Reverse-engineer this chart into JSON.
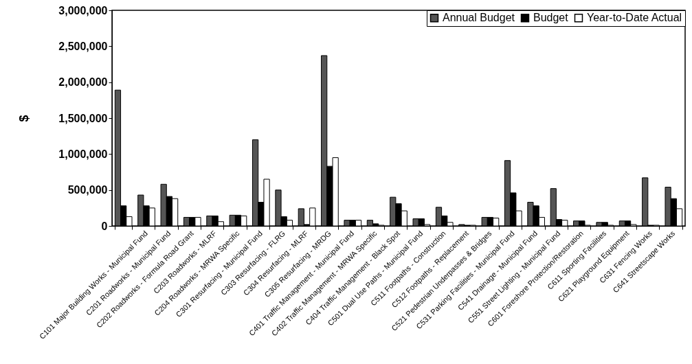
{
  "chart_data": {
    "type": "bar",
    "ylabel": "$",
    "categories": [
      null,
      "C101 Major Building Works - Municipal Fund",
      "C201 Roadworks - Municipal Fund",
      "C202 Roadworks - Formula Road Grant",
      "C203 Roadworks - MLRF",
      "C204 Roadworks - MRWA Specific",
      "C301 Resurfacing - Municipal Fund",
      "C303 Resurfacing - FLRG",
      "C304 Resurfacing - MLRF",
      "C305 Resurfacing - MRDG",
      "C401 Traffic Management - Municipal Fund",
      "C402 Traffic Management - MRWA Specific",
      "C404 Traffic Management - Black Spot",
      "C501 Dual Use Paths - Municipal Fund",
      "C511 Footpaths - Construction",
      "C512 Footpaths - Replacement",
      "C521 Pedestrian Underpasses & Bridges",
      "C531 Parking Facilities - Municipal Fund",
      "C541 Drainage - Municipal Fund",
      "C551 Street Lighting - Municipal Fund",
      "C601 Foreshore Protection/Restoration",
      "C611 Sporting Facilities",
      "C621 Playground Equipment",
      "C631 Fencing Works",
      "C641 Streetscape Works"
    ],
    "series": [
      {
        "name": "Annual Budget",
        "color": "#555555",
        "values": [
          1890000,
          430000,
          580000,
          120000,
          140000,
          150000,
          1200000,
          500000,
          240000,
          2370000,
          80000,
          80000,
          400000,
          100000,
          260000,
          20000,
          120000,
          910000,
          330000,
          520000,
          70000,
          50000,
          70000,
          670000,
          540000
        ]
      },
      {
        "name": "Budget",
        "color": "#000000",
        "values": [
          280000,
          280000,
          410000,
          120000,
          140000,
          150000,
          330000,
          130000,
          20000,
          830000,
          80000,
          30000,
          310000,
          100000,
          140000,
          10000,
          120000,
          460000,
          280000,
          90000,
          70000,
          50000,
          70000,
          10000,
          380000
        ]
      },
      {
        "name": "Year-to-Date Actual",
        "color": "#ffffff",
        "values": [
          130000,
          250000,
          380000,
          120000,
          60000,
          140000,
          650000,
          80000,
          250000,
          950000,
          80000,
          10000,
          210000,
          20000,
          50000,
          10000,
          110000,
          210000,
          120000,
          80000,
          10000,
          10000,
          20000,
          10000,
          240000
        ]
      }
    ],
    "ylim": [
      0,
      3000000
    ],
    "yticks": [
      0,
      {
        "value": 500000,
        "label": "500,000"
      },
      {
        "value": 1000000,
        "label": "1,000,000"
      },
      {
        "value": 1500000,
        "label": "1,500,000"
      },
      {
        "value": 2000000,
        "label": "2,000,000"
      },
      {
        "value": 2500000,
        "label": "2,500,000"
      },
      {
        "value": 3000000,
        "label": "3,000,000"
      }
    ],
    "legend": "top right"
  }
}
